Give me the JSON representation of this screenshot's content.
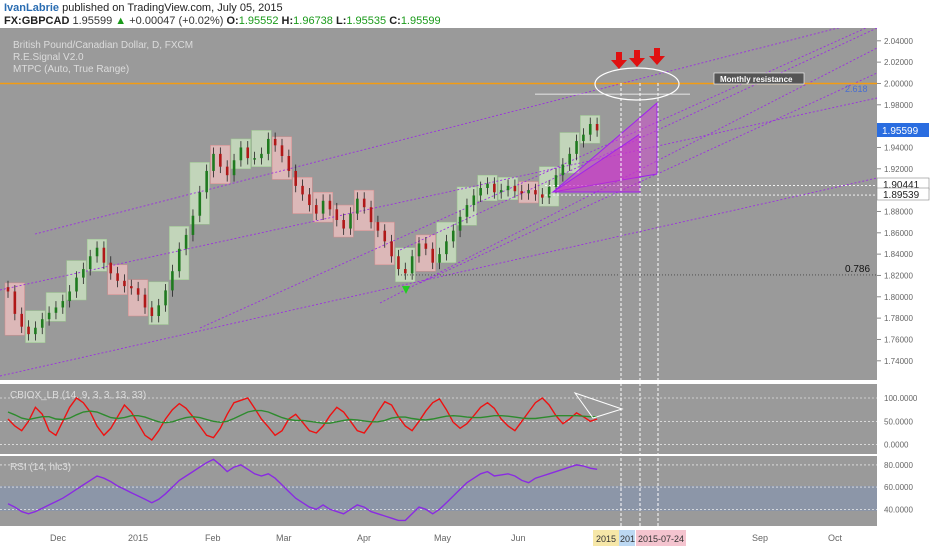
{
  "header": {
    "author": "IvanLabrie",
    "published": "published on TradingView.com, July 05, 2015",
    "symbol": "FX:GBPCAD",
    "last": "1.95599",
    "change": "+0.00047 (+0.02%)",
    "o_label": "O:",
    "o": "1.95552",
    "h_label": "H:",
    "h": "1.96738",
    "l_label": "L:",
    "l": "1.95535",
    "c_label": "C:",
    "c": "1.95599"
  },
  "legend": [
    "British Pound/Canadian Dollar, D, FXCM",
    "R.E.Signal V2.0",
    "MTPC (Auto, True Range)"
  ],
  "annotations": {
    "monthly_resistance": "Monthly resistance",
    "fib_2618": "2.618",
    "fib_0786": "0.786",
    "price_tag": "1.95599",
    "level_a": "1.90441",
    "level_b": "1.89539"
  },
  "time_axis": {
    "labels": [
      "Dec",
      "2015",
      "Feb",
      "Mar",
      "Apr",
      "May",
      "Jun",
      "Sep",
      "Oct"
    ],
    "date_tags": [
      "2015",
      "201",
      "2015-07-24"
    ]
  },
  "chart_data": [
    {
      "type": "candlestick",
      "title": "British Pound/Canadian Dollar, D, FXCM",
      "y_ticks": [
        "2.04000",
        "2.02000",
        "2.00000",
        "1.98000",
        "1.96000",
        "1.94000",
        "1.92000",
        "1.90000",
        "1.88000",
        "1.86000",
        "1.84000",
        "1.82000",
        "1.80000",
        "1.78000",
        "1.76000",
        "1.74000"
      ],
      "ylim": [
        1.722,
        2.052
      ],
      "x_labels": [
        "Dec",
        "2015",
        "Feb",
        "Mar",
        "Apr",
        "May",
        "Jun",
        "Sep",
        "Oct"
      ],
      "close_series": [
        1.805,
        1.784,
        1.772,
        1.765,
        1.771,
        1.779,
        1.785,
        1.79,
        1.796,
        1.805,
        1.818,
        1.826,
        1.838,
        1.846,
        1.832,
        1.822,
        1.815,
        1.81,
        1.808,
        1.802,
        1.79,
        1.782,
        1.792,
        1.806,
        1.824,
        1.845,
        1.858,
        1.876,
        1.898,
        1.918,
        1.934,
        1.922,
        1.914,
        1.928,
        1.94,
        1.93,
        1.93,
        1.934,
        1.948,
        1.942,
        1.932,
        1.918,
        1.904,
        1.896,
        1.886,
        1.878,
        1.89,
        1.882,
        1.872,
        1.864,
        1.878,
        1.892,
        1.884,
        1.87,
        1.862,
        1.852,
        1.838,
        1.826,
        1.822,
        1.838,
        1.85,
        1.845,
        1.832,
        1.84,
        1.852,
        1.862,
        1.875,
        1.886,
        1.895,
        1.902,
        1.906,
        1.898,
        1.9,
        1.904,
        1.899,
        1.897,
        1.9,
        1.896,
        1.893,
        1.903,
        1.914,
        1.924,
        1.934,
        1.946,
        1.952,
        1.962,
        1.956
      ],
      "horizontal_levels": [
        {
          "label": "Monthly resistance",
          "value": 2.0
        },
        {
          "label": "1.90441",
          "value": 1.90441
        },
        {
          "label": "1.89539",
          "value": 1.89539
        },
        {
          "label": "0.786",
          "value": 1.8205
        }
      ]
    },
    {
      "type": "line",
      "title": "CBIOX_LB (14, 9, 3, 3, 13, 33)",
      "y_ticks": [
        "100.0000",
        "50.0000",
        "0.0000"
      ],
      "ylim": [
        -20,
        130
      ],
      "series": [
        {
          "color": "#ee1111",
          "values": [
            55,
            40,
            30,
            50,
            80,
            65,
            30,
            20,
            50,
            80,
            100,
            90,
            70,
            40,
            20,
            35,
            60,
            85,
            70,
            45,
            20,
            10,
            30,
            55,
            75,
            88,
            78,
            60,
            40,
            20,
            15,
            35,
            65,
            90,
            95,
            100,
            78,
            55,
            38,
            20,
            30,
            55,
            65,
            48,
            30,
            25,
            40,
            62,
            80,
            70,
            50,
            30,
            25,
            45,
            70,
            92,
            85,
            60,
            40,
            30,
            50,
            72,
            90,
            98,
            75,
            48,
            35,
            45,
            62,
            80,
            90,
            78,
            55,
            40,
            30,
            50,
            70,
            90,
            100,
            85,
            62,
            45,
            55,
            68,
            60,
            50,
            55
          ]
        },
        {
          "color": "#2e8b2e",
          "values": [
            70,
            64,
            57,
            54,
            57,
            60,
            60,
            55,
            54,
            57,
            64,
            70,
            72,
            70,
            64,
            58,
            56,
            58,
            62,
            62,
            59,
            54,
            49,
            47,
            49,
            54,
            58,
            60,
            58,
            54,
            50,
            48,
            50,
            56,
            63,
            70,
            73,
            73,
            70,
            64,
            58,
            54,
            52,
            52,
            50,
            48,
            46,
            46,
            49,
            52,
            54,
            53,
            51,
            49,
            49,
            52,
            57,
            59,
            59,
            56,
            54,
            53,
            55,
            58,
            61,
            62,
            61,
            59,
            58,
            58,
            60,
            62,
            62,
            61,
            59,
            57,
            56,
            56,
            58,
            60,
            62,
            62,
            62,
            62,
            61,
            60,
            60
          ]
        }
      ]
    },
    {
      "type": "line",
      "title": "RSI (14, hlc3)",
      "y_ticks": [
        "80.0000",
        "60.0000",
        "40.0000"
      ],
      "ylim": [
        25,
        88
      ],
      "series": [
        {
          "color": "#8a2be2",
          "values": [
            45,
            42,
            38,
            36,
            38,
            41,
            44,
            47,
            50,
            54,
            58,
            62,
            66,
            70,
            68,
            65,
            61,
            58,
            55,
            52,
            49,
            46,
            49,
            54,
            60,
            66,
            70,
            74,
            78,
            82,
            85,
            80,
            74,
            78,
            80,
            76,
            72,
            70,
            72,
            68,
            62,
            56,
            50,
            46,
            42,
            40,
            44,
            40,
            38,
            36,
            40,
            44,
            42,
            38,
            36,
            34,
            32,
            30,
            30,
            36,
            42,
            40,
            36,
            40,
            46,
            52,
            58,
            64,
            68,
            72,
            74,
            70,
            71,
            72,
            70,
            66,
            64,
            68,
            70,
            72,
            74,
            76,
            78,
            80,
            79,
            77,
            76
          ]
        }
      ]
    }
  ]
}
